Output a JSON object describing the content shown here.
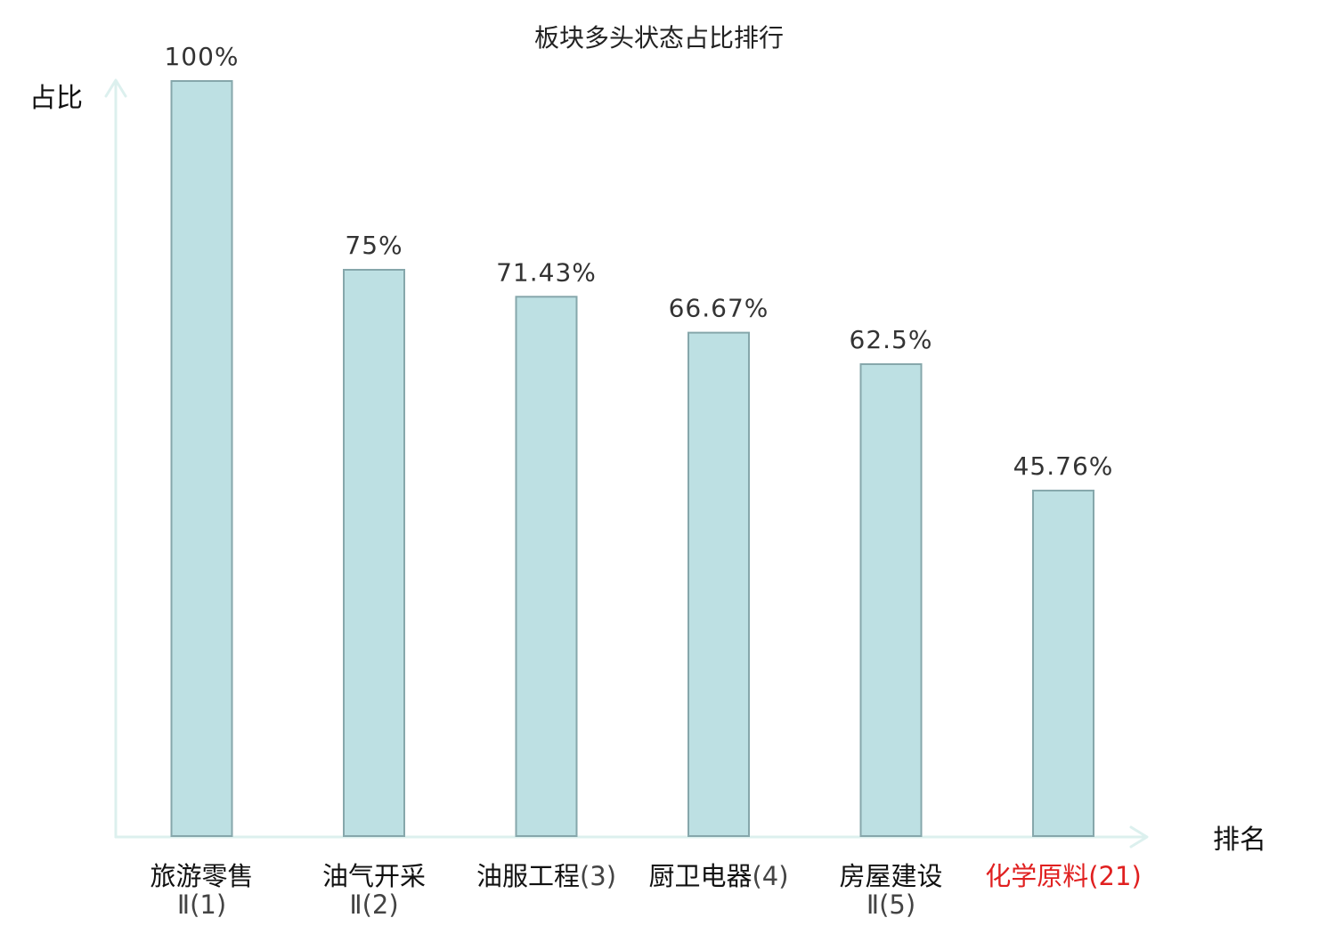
{
  "chart_data": {
    "type": "bar",
    "title": "板块多头状态占比排行",
    "ylabel": "占比",
    "xlabel": "排名",
    "ylim": [
      0,
      100
    ],
    "grid": false,
    "categories": [
      {
        "name": "旅游零售",
        "suffix": "Ⅱ(1)",
        "wrap": true,
        "highlight": false
      },
      {
        "name": "油气开采",
        "suffix": "Ⅱ(2)",
        "wrap": true,
        "highlight": false
      },
      {
        "name": "油服工程",
        "suffix": "(3)",
        "wrap": false,
        "highlight": false
      },
      {
        "name": "厨卫电器",
        "suffix": "(4)",
        "wrap": false,
        "highlight": false
      },
      {
        "name": "房屋建设",
        "suffix": "Ⅱ(5)",
        "wrap": true,
        "highlight": false
      },
      {
        "name": "化学原料",
        "suffix": "(21)",
        "wrap": false,
        "highlight": true
      }
    ],
    "values": [
      100,
      75,
      71.43,
      66.67,
      62.5,
      45.76
    ],
    "value_labels": [
      "100%",
      "75%",
      "71.43%",
      "66.67%",
      "62.5%",
      "45.76%"
    ],
    "colors": {
      "bar_fill": "#bde0e3",
      "bar_stroke": "#86a7ab",
      "axis": "#dcf0ee",
      "highlight_text": "#e02020",
      "suffix_text": "#444444",
      "name_text": "#111111"
    }
  }
}
